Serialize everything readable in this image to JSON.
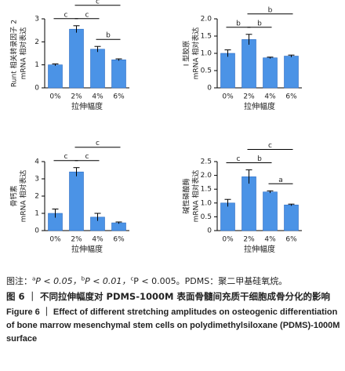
{
  "chart_data": [
    {
      "type": "bar",
      "ylabel": [
        "Runt 相关转录因子 2",
        "mRNA 相对表达"
      ],
      "xlabel": "拉伸幅度",
      "categories": [
        "0%",
        "2%",
        "4%",
        "6%"
      ],
      "values": [
        1.0,
        2.55,
        1.68,
        1.22
      ],
      "errors": [
        0.04,
        0.15,
        0.12,
        0.04
      ],
      "color": "#4b93e6",
      "ylim": [
        0,
        3
      ],
      "yticks": [
        0,
        1,
        2,
        3
      ],
      "significance": [
        {
          "between": [
            "4%",
            "6%"
          ],
          "label": "b"
        },
        {
          "between": [
            "2%",
            "4%"
          ],
          "label": "c"
        },
        {
          "between": [
            "0%",
            "2%"
          ],
          "label": "c"
        },
        {
          "between": [
            "2%",
            "6%"
          ],
          "label": "c"
        }
      ]
    },
    {
      "type": "bar",
      "ylabel": [
        "I 型胶原",
        "mRNA 相对表达"
      ],
      "xlabel": "拉伸幅度",
      "categories": [
        "0%",
        "2%",
        "4%",
        "6%"
      ],
      "values": [
        1.0,
        1.4,
        0.87,
        0.92
      ],
      "errors": [
        0.1,
        0.15,
        0.02,
        0.03
      ],
      "color": "#4b93e6",
      "ylim": [
        0,
        2
      ],
      "yticks": [
        0,
        0.5,
        {
          "value": 1,
          "label": "1.0"
        },
        1.5,
        {
          "value": 2,
          "label": "2.0"
        }
      ],
      "significance": [
        {
          "between": [
            "2%",
            "4%"
          ],
          "label": "b"
        },
        {
          "between": [
            "0%",
            "2%"
          ],
          "label": "b"
        },
        {
          "between": [
            "2%",
            "6%"
          ],
          "label": "b"
        }
      ]
    },
    {
      "type": "bar",
      "ylabel": [
        "骨钙素",
        "mRNA 相对表达"
      ],
      "xlabel": "拉伸幅度",
      "categories": [
        "0%",
        "2%",
        "4%",
        "6%"
      ],
      "values": [
        1.0,
        3.4,
        0.78,
        0.45
      ],
      "errors": [
        0.25,
        0.25,
        0.22,
        0.05
      ],
      "color": "#4b93e6",
      "ylim": [
        0,
        4
      ],
      "yticks": [
        0,
        1,
        2,
        3,
        4
      ],
      "significance": [
        {
          "between": [
            "2%",
            "4%"
          ],
          "label": "c"
        },
        {
          "between": [
            "0%",
            "2%"
          ],
          "label": "c"
        },
        {
          "between": [
            "2%",
            "6%"
          ],
          "label": "c"
        }
      ]
    },
    {
      "type": "bar",
      "ylabel": [
        "碱性磷酸酶",
        "mRNA 相对表达"
      ],
      "xlabel": "拉伸幅度",
      "categories": [
        "0%",
        "2%",
        "4%",
        "6%"
      ],
      "values": [
        1.0,
        1.95,
        1.4,
        0.93
      ],
      "errors": [
        0.13,
        0.25,
        0.04,
        0.03
      ],
      "color": "#4b93e6",
      "ylim": [
        0,
        2.5
      ],
      "yticks": [
        0,
        0.5,
        {
          "value": 1,
          "label": "1.0"
        },
        1.5,
        {
          "value": 2,
          "label": "2.0"
        },
        2.5
      ],
      "significance": [
        {
          "between": [
            "4%",
            "6%"
          ],
          "label": "a"
        },
        {
          "between": [
            "2%",
            "4%"
          ],
          "label": "b"
        },
        {
          "between": [
            "0%",
            "2%"
          ],
          "label": "c"
        },
        {
          "between": [
            "2%",
            "6%"
          ],
          "label": "c"
        }
      ]
    }
  ],
  "note_parts": [
    "图注：",
    "a",
    "P < 0.05，",
    "b",
    "P < 0.01，",
    "c",
    "P < 0.005。PDMS：聚二甲基硅氧烷。"
  ],
  "caption_cn": "图 6 ｜ 不同拉伸幅度对 PDMS-1000M 表面骨髓间充质干细胞成骨分化的影响",
  "caption_en": "Figure 6 ｜ Effect of different stretching amplitudes on osteogenic differentiation of bone marrow mesenchymal stem cells on polydimethylsiloxane (PDMS)-1000M surface"
}
